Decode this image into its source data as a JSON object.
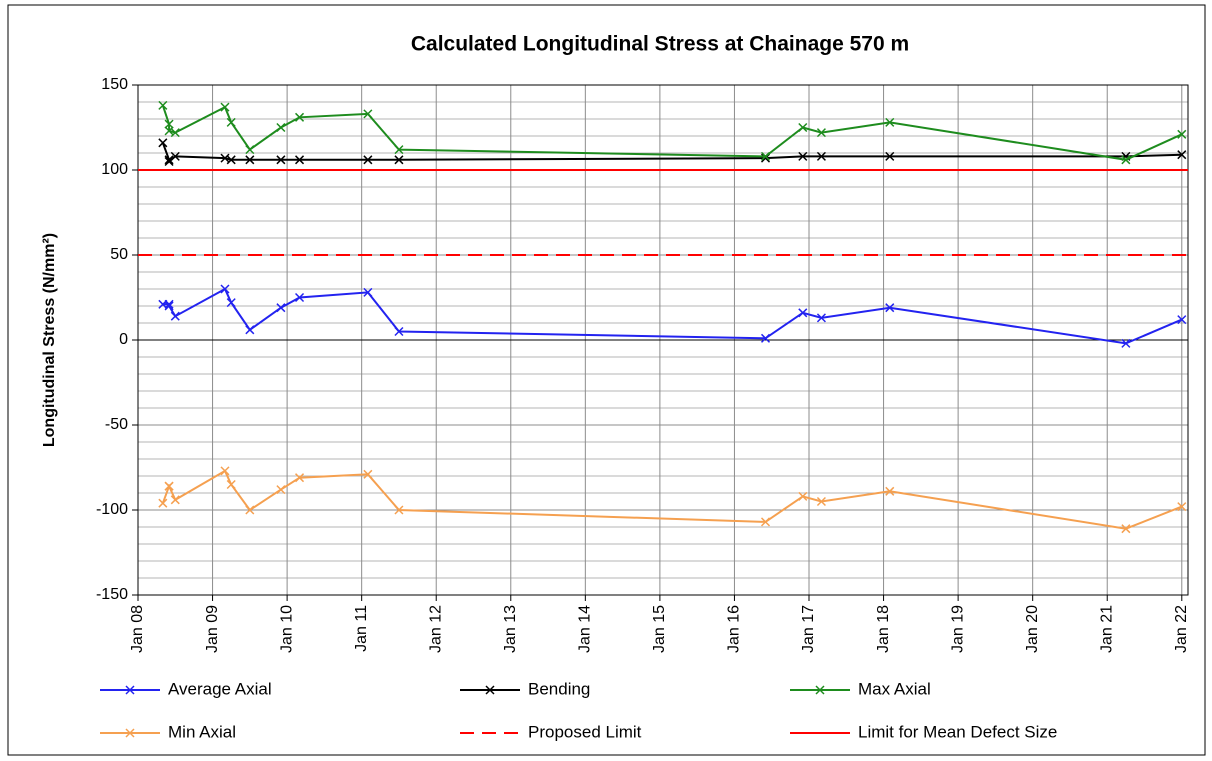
{
  "chart_data": {
    "type": "line",
    "title": "Calculated Longitudinal Stress at Chainage 570 m",
    "ylabel": "Longitudinal Stress (N/mm²)",
    "x": [
      "2008-05",
      "2008-06",
      "2008-06",
      "2008-07",
      "2009-03",
      "2009-04",
      "2009-07",
      "2009-12",
      "2010-03",
      "2011-02",
      "2011-07",
      "2016-06",
      "2016-12",
      "2017-03",
      "2018-02",
      "2021-04",
      "2022-01"
    ],
    "series": [
      {
        "name": "Average Axial",
        "color": "#2323f0",
        "values": [
          21,
          21,
          20,
          14,
          30,
          22,
          6,
          19,
          25,
          28,
          5,
          1,
          16,
          13,
          19,
          -2,
          12
        ]
      },
      {
        "name": "Bending",
        "color": "#000000",
        "values": [
          116,
          106,
          105,
          108,
          107,
          106,
          106,
          106,
          106,
          106,
          106,
          107,
          108,
          108,
          108,
          108,
          109
        ]
      },
      {
        "name": "Max Axial",
        "color": "#1e8c1e",
        "values": [
          138,
          127,
          123,
          122,
          137,
          128,
          112,
          125,
          131,
          133,
          112,
          108,
          125,
          122,
          128,
          106,
          121
        ]
      },
      {
        "name": "Min Axial",
        "color": "#f5a050",
        "values": [
          -96,
          -86,
          -86,
          -94,
          -77,
          -85,
          -100,
          -88,
          -81,
          -79,
          -100,
          -107,
          -92,
          -95,
          -89,
          -111,
          -98
        ]
      }
    ],
    "reference_lines": [
      {
        "name": "Proposed Limit",
        "color": "#ff0000",
        "value": 50,
        "dash": true
      },
      {
        "name": "Limit for Mean Defect Size",
        "color": "#ff0000",
        "value": 100,
        "dash": false
      }
    ],
    "xlim": [
      "2008-01",
      "2022-02"
    ],
    "xticks": [
      {
        "value": "2008-01",
        "label": "Jan 08"
      },
      {
        "value": "2009-01",
        "label": "Jan 09"
      },
      {
        "value": "2010-01",
        "label": "Jan 10"
      },
      {
        "value": "2011-01",
        "label": "Jan 11"
      },
      {
        "value": "2012-01",
        "label": "Jan 12"
      },
      {
        "value": "2013-01",
        "label": "Jan 13"
      },
      {
        "value": "2014-01",
        "label": "Jan 14"
      },
      {
        "value": "2015-01",
        "label": "Jan 15"
      },
      {
        "value": "2016-01",
        "label": "Jan 16"
      },
      {
        "value": "2017-01",
        "label": "Jan 17"
      },
      {
        "value": "2018-01",
        "label": "Jan 18"
      },
      {
        "value": "2019-01",
        "label": "Jan 19"
      },
      {
        "value": "2020-01",
        "label": "Jan 20"
      },
      {
        "value": "2021-01",
        "label": "Jan 21"
      },
      {
        "value": "2022-01",
        "label": "Jan 22"
      }
    ],
    "ylim": [
      -150,
      150
    ],
    "yticks": [
      -150,
      -100,
      -50,
      0,
      50,
      100,
      150
    ],
    "grid": true,
    "minor_grid_step": 10,
    "legend": "bottom"
  }
}
